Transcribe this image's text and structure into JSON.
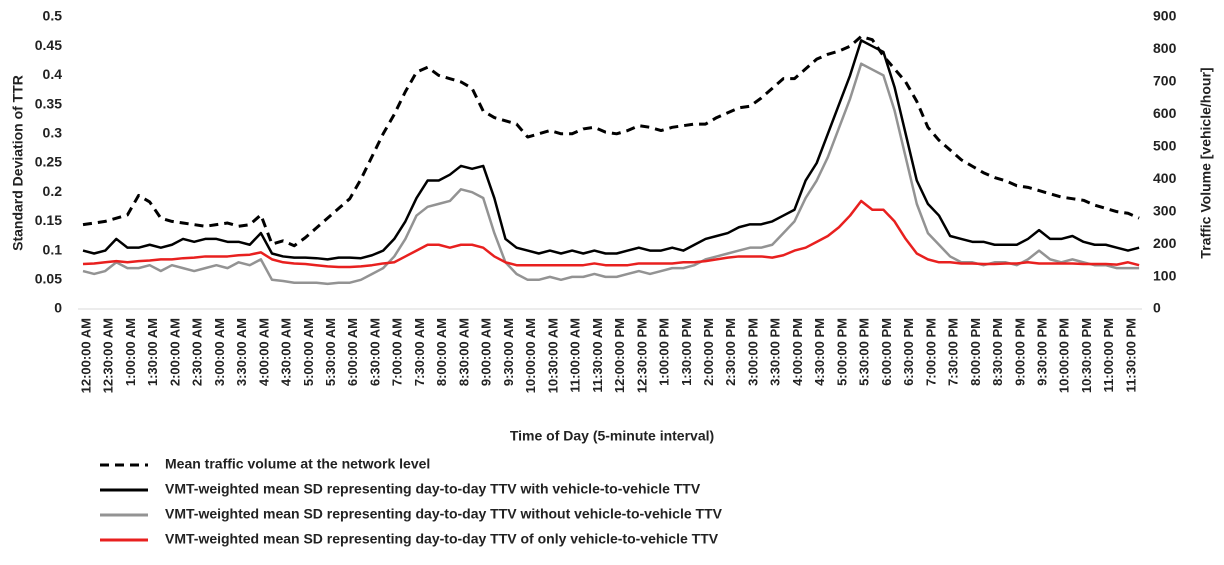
{
  "chart_data": {
    "type": "line",
    "ylabel": "Standard Deviation of TTR",
    "y2label": "Traffic Volume [vehicle/hour]",
    "xlabel": "Time of Day (5-minute interval)",
    "legend": "bottom",
    "categories": [
      "12:00:00 AM",
      null,
      "12:30:00 AM",
      null,
      "1:00:00 AM",
      null,
      "1:30:00 AM",
      null,
      "2:00:00 AM",
      null,
      "2:30:00 AM",
      null,
      "3:00:00 AM",
      null,
      "3:30:00 AM",
      null,
      "4:00:00 AM",
      null,
      "4:30:00 AM",
      null,
      "5:00:00 AM",
      null,
      "5:30:00 AM",
      null,
      "6:00:00 AM",
      null,
      "6:30:00 AM",
      null,
      "7:00:00 AM",
      null,
      "7:30:00 AM",
      null,
      "8:00:00 AM",
      null,
      "8:30:00 AM",
      null,
      "9:00:00 AM",
      null,
      "9:30:00 AM",
      null,
      "10:00:00 AM",
      null,
      "10:30:00 AM",
      null,
      "11:00:00 AM",
      null,
      "11:30:00 AM",
      null,
      "12:00:00 PM",
      null,
      "12:30:00 PM",
      null,
      "1:00:00 PM",
      null,
      "1:30:00 PM",
      null,
      "2:00:00 PM",
      null,
      "2:30:00 PM",
      null,
      "3:00:00 PM",
      null,
      "3:30:00 PM",
      null,
      "4:00:00 PM",
      null,
      "4:30:00 PM",
      null,
      "5:00:00 PM",
      null,
      "5:30:00 PM",
      null,
      "6:00:00 PM",
      null,
      "6:30:00 PM",
      null,
      "7:00:00 PM",
      null,
      "7:30:00 PM",
      null,
      "8:00:00 PM",
      null,
      "8:30:00 PM",
      null,
      "9:00:00 PM",
      null,
      "9:30:00 PM",
      null,
      "10:00:00 PM",
      null,
      "10:30:00 PM",
      null,
      "11:00:00 PM",
      null,
      "11:30:00 PM",
      null
    ],
    "ylim": [
      0,
      0.5
    ],
    "yticks": [
      0,
      0.05,
      0.1,
      0.15,
      0.2,
      0.25,
      0.3,
      0.35,
      0.4,
      0.45,
      0.5
    ],
    "y2lim": [
      0,
      900
    ],
    "y2ticks": [
      0,
      100,
      200,
      300,
      400,
      500,
      600,
      700,
      800,
      900
    ],
    "series": [
      {
        "name": "Mean traffic volume at the network level",
        "color": "#000000",
        "line_style": "dashed",
        "axis": "y2",
        "values": [
          260,
          265,
          270,
          280,
          290,
          350,
          330,
          280,
          270,
          265,
          260,
          255,
          260,
          265,
          255,
          260,
          290,
          200,
          210,
          195,
          220,
          250,
          280,
          310,
          340,
          400,
          470,
          540,
          600,
          670,
          730,
          745,
          720,
          710,
          700,
          680,
          610,
          590,
          580,
          570,
          530,
          540,
          550,
          540,
          540,
          555,
          560,
          545,
          540,
          550,
          565,
          560,
          550,
          560,
          565,
          570,
          570,
          590,
          605,
          620,
          625,
          650,
          680,
          710,
          710,
          740,
          770,
          785,
          795,
          810,
          840,
          830,
          780,
          740,
          700,
          640,
          560,
          520,
          490,
          460,
          440,
          420,
          405,
          395,
          380,
          375,
          365,
          355,
          345,
          340,
          335,
          320,
          310,
          300,
          295,
          280
        ]
      },
      {
        "name": "VMT-weighted mean SD representing day-to-day TTV with vehicle-to-vehicle TTV",
        "color": "#000000",
        "line_style": "solid",
        "values": [
          0.1,
          0.095,
          0.1,
          0.12,
          0.105,
          0.105,
          0.11,
          0.105,
          0.11,
          0.12,
          0.115,
          0.12,
          0.12,
          0.115,
          0.115,
          0.11,
          0.13,
          0.095,
          0.09,
          0.088,
          0.088,
          0.087,
          0.085,
          0.088,
          0.088,
          0.087,
          0.092,
          0.1,
          0.12,
          0.15,
          0.19,
          0.22,
          0.22,
          0.23,
          0.245,
          0.24,
          0.245,
          0.19,
          0.12,
          0.105,
          0.1,
          0.095,
          0.1,
          0.095,
          0.1,
          0.095,
          0.1,
          0.095,
          0.095,
          0.1,
          0.105,
          0.1,
          0.1,
          0.105,
          0.1,
          0.11,
          0.12,
          0.125,
          0.13,
          0.14,
          0.145,
          0.145,
          0.15,
          0.16,
          0.17,
          0.22,
          0.25,
          0.3,
          0.35,
          0.4,
          0.46,
          0.45,
          0.44,
          0.38,
          0.3,
          0.22,
          0.18,
          0.16,
          0.125,
          0.12,
          0.115,
          0.115,
          0.11,
          0.11,
          0.11,
          0.12,
          0.135,
          0.12,
          0.12,
          0.125,
          0.115,
          0.11,
          0.11,
          0.105,
          0.1,
          0.105
        ]
      },
      {
        "name": "VMT-weighted mean SD representing day-to-day TTV without vehicle-to-vehicle TTV",
        "color": "#939393",
        "line_style": "solid",
        "values": [
          0.065,
          0.06,
          0.065,
          0.08,
          0.07,
          0.07,
          0.075,
          0.065,
          0.075,
          0.07,
          0.065,
          0.07,
          0.075,
          0.07,
          0.08,
          0.075,
          0.085,
          0.05,
          0.048,
          0.045,
          0.045,
          0.045,
          0.043,
          0.045,
          0.045,
          0.05,
          0.06,
          0.07,
          0.09,
          0.12,
          0.16,
          0.175,
          0.18,
          0.185,
          0.205,
          0.2,
          0.19,
          0.13,
          0.08,
          0.06,
          0.05,
          0.05,
          0.055,
          0.05,
          0.055,
          0.055,
          0.06,
          0.055,
          0.055,
          0.06,
          0.065,
          0.06,
          0.065,
          0.07,
          0.07,
          0.075,
          0.085,
          0.09,
          0.095,
          0.1,
          0.105,
          0.105,
          0.11,
          0.13,
          0.15,
          0.19,
          0.22,
          0.26,
          0.31,
          0.36,
          0.42,
          0.41,
          0.4,
          0.34,
          0.26,
          0.18,
          0.13,
          0.11,
          0.09,
          0.08,
          0.08,
          0.075,
          0.08,
          0.08,
          0.075,
          0.085,
          0.1,
          0.085,
          0.08,
          0.085,
          0.08,
          0.075,
          0.075,
          0.07,
          0.07,
          0.07
        ]
      },
      {
        "name": "VMT-weighted mean SD representing day-to-day TTV of only vehicle-to-vehicle TTV",
        "color": "#e8201f",
        "line_style": "solid",
        "values": [
          0.077,
          0.078,
          0.08,
          0.082,
          0.08,
          0.082,
          0.083,
          0.085,
          0.085,
          0.087,
          0.088,
          0.09,
          0.09,
          0.09,
          0.092,
          0.093,
          0.097,
          0.085,
          0.08,
          0.078,
          0.077,
          0.075,
          0.073,
          0.072,
          0.072,
          0.073,
          0.075,
          0.078,
          0.08,
          0.09,
          0.1,
          0.11,
          0.11,
          0.105,
          0.11,
          0.11,
          0.105,
          0.09,
          0.08,
          0.075,
          0.075,
          0.075,
          0.075,
          0.075,
          0.075,
          0.075,
          0.078,
          0.075,
          0.075,
          0.075,
          0.078,
          0.078,
          0.078,
          0.078,
          0.08,
          0.08,
          0.082,
          0.085,
          0.088,
          0.09,
          0.09,
          0.09,
          0.088,
          0.092,
          0.1,
          0.105,
          0.115,
          0.125,
          0.14,
          0.16,
          0.185,
          0.17,
          0.17,
          0.15,
          0.12,
          0.095,
          0.085,
          0.08,
          0.08,
          0.078,
          0.078,
          0.077,
          0.077,
          0.078,
          0.078,
          0.08,
          0.078,
          0.078,
          0.078,
          0.078,
          0.077,
          0.077,
          0.077,
          0.076,
          0.08,
          0.075
        ]
      }
    ]
  }
}
